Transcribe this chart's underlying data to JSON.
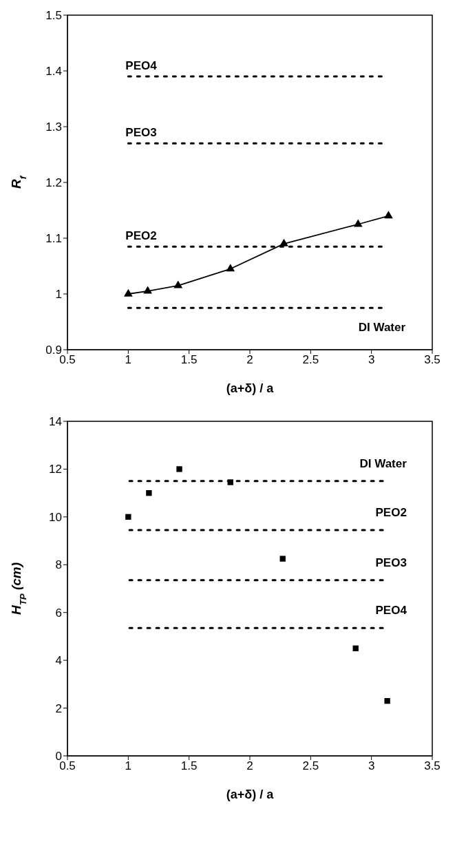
{
  "chart_data": [
    {
      "type": "line",
      "xlabel": "(a+δ) / a",
      "ylabel": "R$_{f}$",
      "xlim": [
        0.5,
        3.5
      ],
      "xticks": [
        0.5,
        1,
        1.5,
        2,
        2.5,
        3,
        3.5
      ],
      "ylim": [
        0.9,
        1.5
      ],
      "yticks": [
        0.9,
        1,
        1.1,
        1.2,
        1.3,
        1.4,
        1.5
      ],
      "marker": "triangle",
      "x": [
        1,
        1.16,
        1.41,
        1.84,
        2.28,
        2.89,
        3.14
      ],
      "series": [
        {
          "color": "#000000",
          "values": [
            1.0,
            1.005,
            1.015,
            1.045,
            1.09,
            1.125,
            1.14
          ]
        },
        {
          "name": "PEO4",
          "type": "line",
          "x": [
            1,
            3.11
          ],
          "values": [
            1.39,
            1.39
          ],
          "color": "#000000",
          "line_style": "dotted",
          "marker": "none"
        },
        {
          "name": "PEO3",
          "type": "line",
          "x": [
            1,
            3.11
          ],
          "values": [
            1.27,
            1.27
          ],
          "color": "#000000",
          "line_style": "dotted",
          "marker": "none"
        },
        {
          "name": "PEO2",
          "type": "line",
          "x": [
            1,
            3.11
          ],
          "values": [
            1.085,
            1.085
          ],
          "color": "#000000",
          "line_style": "dotted",
          "marker": "none"
        },
        {
          "name": "DI Water",
          "type": "line",
          "x": [
            1,
            3.11
          ],
          "values": [
            0.975,
            0.975
          ],
          "color": "#000000",
          "line_style": "dotted",
          "marker": "none"
        }
      ]
    },
    {
      "type": "scatter",
      "xlabel": "(a+δ) / a",
      "ylabel": "H$_{TP}$ (cm)",
      "xlim": [
        0.5,
        3.5
      ],
      "xticks": [
        0.5,
        1,
        1.5,
        2,
        2.5,
        3,
        3.5
      ],
      "ylim": [
        0,
        14
      ],
      "yticks": [
        0,
        2,
        4,
        6,
        8,
        10,
        12,
        14
      ],
      "marker": "square",
      "x": [
        1,
        1.17,
        1.42,
        1.84,
        2.27,
        2.87,
        3.13
      ],
      "series": [
        {
          "color": "#000000",
          "values": [
            10.0,
            11.0,
            12.0,
            11.45,
            8.25,
            4.5,
            2.3
          ]
        },
        {
          "name": "DI Water",
          "type": "line",
          "x": [
            1.01,
            3.12
          ],
          "values": [
            11.5,
            11.5
          ],
          "color": "#000000",
          "line_style": "dotted",
          "marker": "none"
        },
        {
          "name": "PEO2",
          "type": "line",
          "x": [
            1.01,
            3.12
          ],
          "values": [
            9.45,
            9.45
          ],
          "color": "#000000",
          "line_style": "dotted",
          "marker": "none"
        },
        {
          "name": "PEO3",
          "type": "line",
          "x": [
            1.01,
            3.12
          ],
          "values": [
            7.35,
            7.35
          ],
          "color": "#000000",
          "line_style": "dotted",
          "marker": "none"
        },
        {
          "name": "PEO4",
          "type": "line",
          "x": [
            1.01,
            3.12
          ],
          "values": [
            5.35,
            5.35
          ],
          "color": "#000000",
          "line_style": "dotted",
          "marker": "none"
        }
      ]
    }
  ]
}
